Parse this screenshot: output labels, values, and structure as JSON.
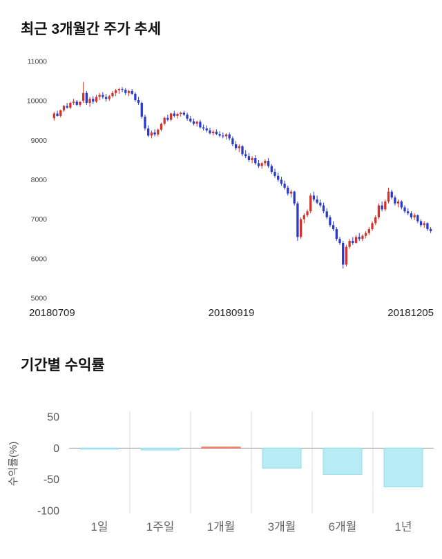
{
  "chart_data": [
    {
      "type": "candlestick",
      "title": "최근 3개월간 주가 추세",
      "ylim": [
        5000,
        11000
      ],
      "yticks": [
        11000,
        10000,
        9000,
        8000,
        7000,
        6000,
        5000
      ],
      "xticklabels": [
        "20180709",
        "20180919",
        "20181205"
      ],
      "up_color": "#d0342c",
      "down_color": "#2939cc",
      "candles": [
        [
          9560,
          9720,
          9500,
          9680
        ],
        [
          9680,
          9750,
          9600,
          9620
        ],
        [
          9620,
          9780,
          9580,
          9760
        ],
        [
          9760,
          9900,
          9720,
          9870
        ],
        [
          9870,
          9950,
          9800,
          9830
        ],
        [
          9830,
          9980,
          9790,
          9950
        ],
        [
          9950,
          10050,
          9900,
          9980
        ],
        [
          9980,
          10020,
          9870,
          9900
        ],
        [
          9900,
          10000,
          9850,
          9970
        ],
        [
          10000,
          10480,
          9950,
          10200
        ],
        [
          10200,
          10250,
          9900,
          9950
        ],
        [
          9950,
          10100,
          9850,
          10050
        ],
        [
          10050,
          10120,
          9920,
          9980
        ],
        [
          9980,
          10150,
          9950,
          10100
        ],
        [
          10100,
          10200,
          10020,
          10150
        ],
        [
          10150,
          10220,
          10050,
          10100
        ],
        [
          10100,
          10180,
          9980,
          10050
        ],
        [
          10050,
          10150,
          10000,
          10120
        ],
        [
          10120,
          10250,
          10080,
          10200
        ],
        [
          10200,
          10300,
          10120,
          10270
        ],
        [
          10270,
          10330,
          10180,
          10300
        ],
        [
          10300,
          10350,
          10220,
          10280
        ],
        [
          10280,
          10320,
          10150,
          10200
        ],
        [
          10200,
          10280,
          10120,
          10250
        ],
        [
          10250,
          10300,
          10150,
          10180
        ],
        [
          10180,
          10220,
          9980,
          10020
        ],
        [
          10020,
          10100,
          9900,
          9950
        ],
        [
          9950,
          9980,
          9550,
          9600
        ],
        [
          9600,
          9650,
          9250,
          9300
        ],
        [
          9300,
          9380,
          9080,
          9120
        ],
        [
          9120,
          9250,
          9050,
          9200
        ],
        [
          9200,
          9280,
          9100,
          9150
        ],
        [
          9150,
          9300,
          9100,
          9270
        ],
        [
          9270,
          9450,
          9230,
          9420
        ],
        [
          9420,
          9600,
          9380,
          9570
        ],
        [
          9570,
          9650,
          9480,
          9520
        ],
        [
          9520,
          9700,
          9480,
          9680
        ],
        [
          9680,
          9750,
          9580,
          9620
        ],
        [
          9620,
          9700,
          9550,
          9670
        ],
        [
          9670,
          9720,
          9600,
          9700
        ],
        [
          9700,
          9750,
          9620,
          9650
        ],
        [
          9650,
          9700,
          9500,
          9550
        ],
        [
          9550,
          9620,
          9450,
          9480
        ],
        [
          9480,
          9550,
          9380,
          9420
        ],
        [
          9420,
          9500,
          9350,
          9470
        ],
        [
          9470,
          9520,
          9300,
          9330
        ],
        [
          9330,
          9400,
          9250,
          9300
        ],
        [
          9300,
          9380,
          9200,
          9250
        ],
        [
          9250,
          9320,
          9150,
          9180
        ],
        [
          9180,
          9260,
          9120,
          9220
        ],
        [
          9220,
          9280,
          9130,
          9160
        ],
        [
          9160,
          9230,
          9080,
          9120
        ],
        [
          9120,
          9200,
          9050,
          9100
        ],
        [
          9100,
          9180,
          9020,
          9150
        ],
        [
          9150,
          9200,
          9000,
          9050
        ],
        [
          9050,
          9100,
          8850,
          8900
        ],
        [
          8900,
          8980,
          8750,
          8800
        ],
        [
          8800,
          8900,
          8700,
          8850
        ],
        [
          8850,
          8880,
          8600,
          8650
        ],
        [
          8650,
          8750,
          8550,
          8600
        ],
        [
          8600,
          8680,
          8450,
          8500
        ],
        [
          8500,
          8600,
          8420,
          8550
        ],
        [
          8550,
          8620,
          8380,
          8420
        ],
        [
          8420,
          8500,
          8300,
          8350
        ],
        [
          8350,
          8450,
          8280,
          8420
        ],
        [
          8420,
          8520,
          8350,
          8480
        ],
        [
          8480,
          8550,
          8300,
          8350
        ],
        [
          8350,
          8400,
          8150,
          8200
        ],
        [
          8200,
          8280,
          8050,
          8100
        ],
        [
          8100,
          8180,
          7950,
          8000
        ],
        [
          8000,
          8080,
          7850,
          7900
        ],
        [
          7900,
          7980,
          7750,
          7800
        ],
        [
          7800,
          7850,
          7600,
          7650
        ],
        [
          7650,
          7750,
          7550,
          7700
        ],
        [
          7700,
          7720,
          7350,
          7400
        ],
        [
          7400,
          7450,
          6450,
          6550
        ],
        [
          6550,
          7050,
          6500,
          7000
        ],
        [
          7000,
          7150,
          6900,
          7100
        ],
        [
          7100,
          7250,
          7050,
          7200
        ],
        [
          7200,
          7650,
          7150,
          7600
        ],
        [
          7600,
          7700,
          7450,
          7500
        ],
        [
          7500,
          7600,
          7380,
          7420
        ],
        [
          7420,
          7500,
          7300,
          7350
        ],
        [
          7350,
          7420,
          7150,
          7200
        ],
        [
          7200,
          7280,
          7000,
          7050
        ],
        [
          7050,
          7100,
          6800,
          6850
        ],
        [
          6850,
          6950,
          6700,
          6750
        ],
        [
          6750,
          6800,
          6450,
          6500
        ],
        [
          6500,
          6550,
          6350,
          6400
        ],
        [
          6400,
          6450,
          5750,
          5850
        ],
        [
          5850,
          6350,
          5800,
          6300
        ],
        [
          6300,
          6500,
          6250,
          6450
        ],
        [
          6450,
          6550,
          6350,
          6400
        ],
        [
          6400,
          6600,
          6380,
          6550
        ],
        [
          6550,
          6650,
          6450,
          6500
        ],
        [
          6500,
          6620,
          6440,
          6580
        ],
        [
          6580,
          6700,
          6520,
          6650
        ],
        [
          6650,
          6800,
          6600,
          6750
        ],
        [
          6750,
          6950,
          6700,
          6900
        ],
        [
          6900,
          7100,
          6850,
          7050
        ],
        [
          7050,
          7400,
          7000,
          7350
        ],
        [
          7350,
          7450,
          7200,
          7250
        ],
        [
          7250,
          7500,
          7200,
          7450
        ],
        [
          7450,
          7800,
          7400,
          7700
        ],
        [
          7700,
          7750,
          7500,
          7550
        ],
        [
          7550,
          7600,
          7350,
          7400
        ],
        [
          7400,
          7500,
          7300,
          7450
        ],
        [
          7450,
          7480,
          7250,
          7300
        ],
        [
          7300,
          7350,
          7150,
          7200
        ],
        [
          7200,
          7280,
          7100,
          7150
        ],
        [
          7150,
          7200,
          7000,
          7050
        ],
        [
          7050,
          7150,
          6980,
          7100
        ],
        [
          7100,
          7120,
          6900,
          6950
        ],
        [
          6950,
          7000,
          6800,
          6850
        ],
        [
          6850,
          6950,
          6780,
          6900
        ],
        [
          6900,
          6920,
          6700,
          6750
        ],
        [
          6750,
          6800,
          6650,
          6700
        ]
      ]
    },
    {
      "type": "bar",
      "title": "기간별 수익률",
      "ylabel": "수익률(%)",
      "categories": [
        "1일",
        "1주일",
        "1개월",
        "3개월",
        "6개월",
        "1년"
      ],
      "values": [
        -1,
        -3,
        1,
        -32,
        -42,
        -62
      ],
      "ylim": [
        -100,
        50
      ],
      "yticks": [
        50,
        0,
        -50,
        -100
      ],
      "negative_bar_fill": "#b7ecf5",
      "negative_bar_stroke": "#8fdfee",
      "positive_bar_fill": "#f2a38c",
      "positive_bar_stroke": "#e2654a",
      "gridline_color": "#dddddd",
      "zeroline_color": "#999999"
    }
  ]
}
